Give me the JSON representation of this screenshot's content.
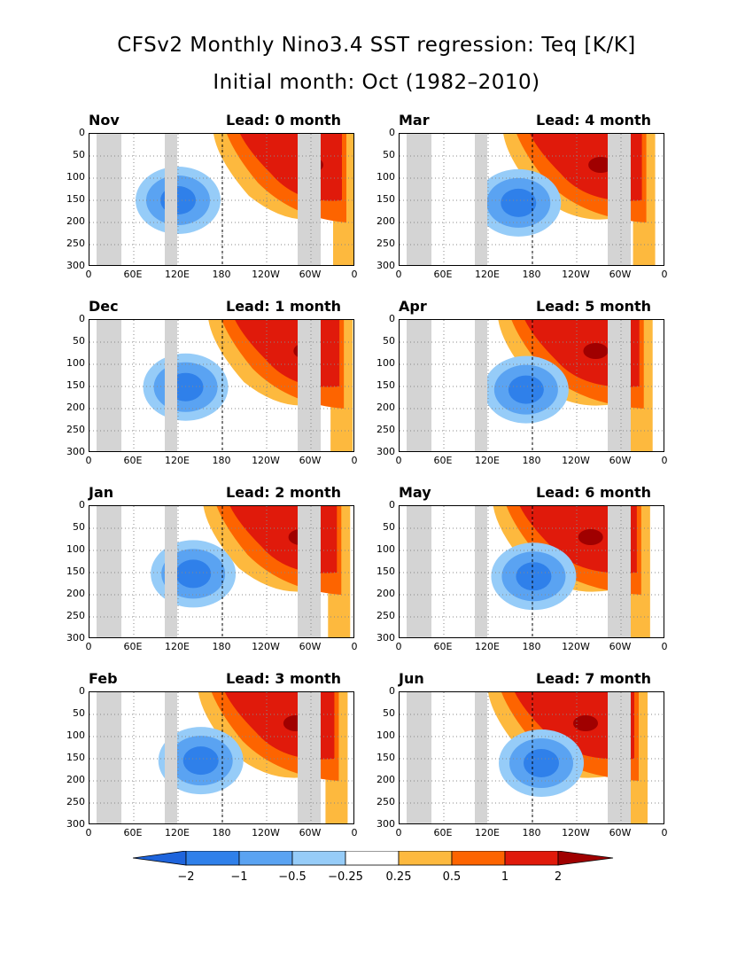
{
  "title_line1": "CFSv2 Monthly Nino3.4 SST regression: Teq [K/K]",
  "title_line2": "Initial month: Oct (1982–2010)",
  "chart_data": {
    "type": "heatmap",
    "x_ticks": [
      "0",
      "60E",
      "120E",
      "180",
      "120W",
      "60W",
      "0"
    ],
    "y_ticks": [
      "0",
      "50",
      "100",
      "150",
      "200",
      "250",
      "300"
    ],
    "ylim": [
      300,
      0
    ],
    "colorbar": {
      "labels": [
        "−2",
        "−1",
        "−0.5",
        "−0.25",
        "0.25",
        "0.5",
        "1",
        "2"
      ],
      "colors": [
        "#1e64dc",
        "#2f80ea",
        "#5aa3f2",
        "#96ccf8",
        "#ffffff",
        "#fdb93e",
        "#fd6400",
        "#e01a0b",
        "#a00000"
      ]
    },
    "panels": [
      {
        "month": "Nov",
        "lead": "Lead: 0 month"
      },
      {
        "month": "Mar",
        "lead": "Lead: 4 month"
      },
      {
        "month": "Dec",
        "lead": "Lead: 1 month"
      },
      {
        "month": "Apr",
        "lead": "Lead: 5 month"
      },
      {
        "month": "Jan",
        "lead": "Lead: 2 month"
      },
      {
        "month": "May",
        "lead": "Lead: 6 month"
      },
      {
        "month": "Feb",
        "lead": "Lead: 3 month"
      },
      {
        "month": "Jun",
        "lead": "Lead: 7 month"
      }
    ]
  }
}
